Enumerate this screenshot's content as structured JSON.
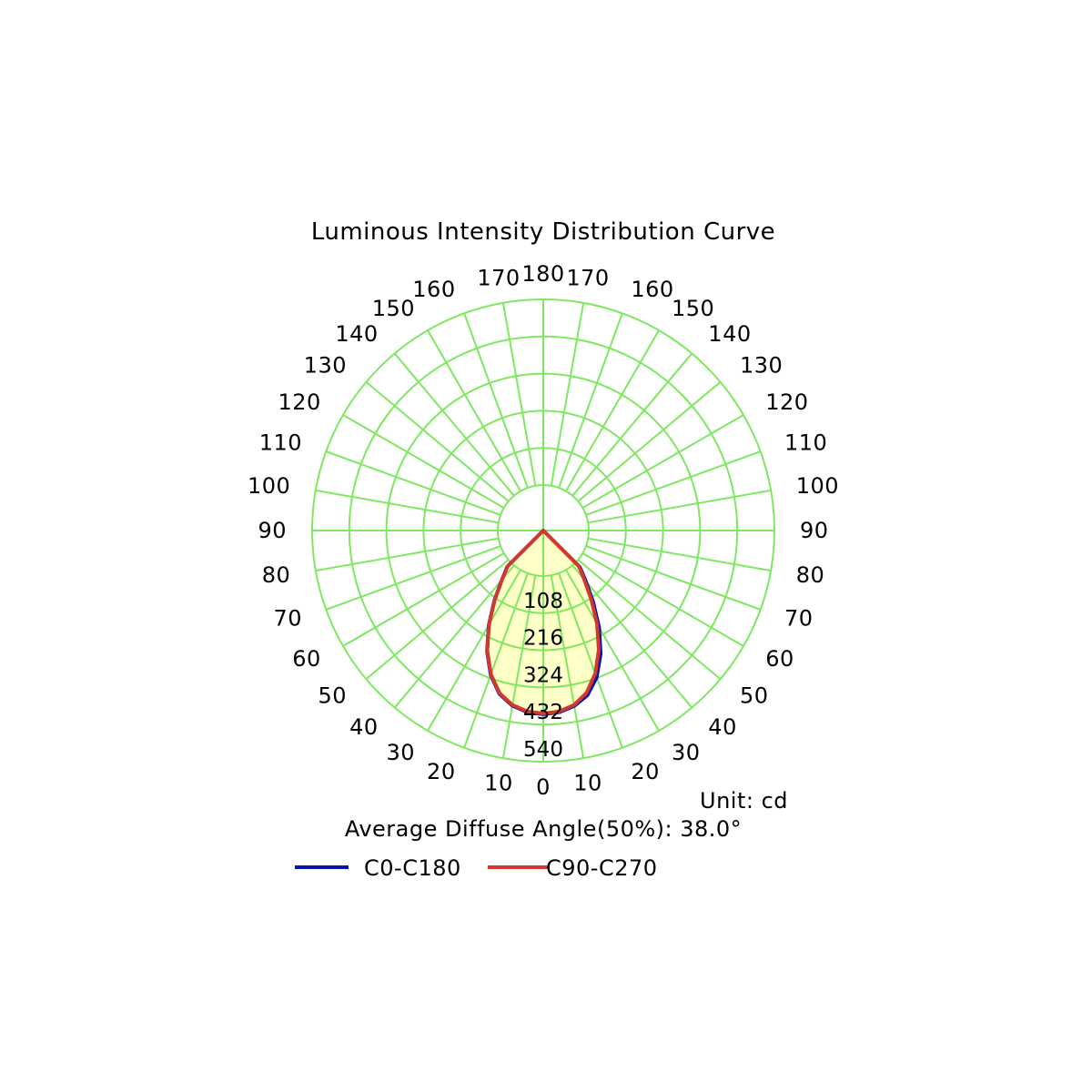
{
  "chart_data": {
    "type": "polar",
    "title": "Luminous Intensity Distribution Curve",
    "unit_label": "Unit: cd",
    "footnote": "Average Diffuse Angle(50%): 38.0°",
    "radial_axis": {
      "max": 540,
      "ticks": [
        108,
        216,
        324,
        432,
        540
      ]
    },
    "angle_labels_left": [
      0,
      10,
      20,
      30,
      40,
      50,
      60,
      70,
      80,
      90,
      100,
      110,
      120,
      130,
      140,
      150,
      160,
      170,
      180
    ],
    "angle_labels_right": [
      10,
      20,
      30,
      40,
      50,
      60,
      70,
      80,
      90,
      100,
      110,
      120,
      130,
      140,
      150,
      160,
      170
    ],
    "grid": true,
    "legend_placement": "bottom",
    "colors": {
      "grid": "#7ee860",
      "fill": "#ffffc8",
      "c0": "#0a14a8",
      "c90": "#d2382d"
    },
    "series": [
      {
        "name": "C0-C180",
        "color": "#0a14a8",
        "angles": [
          0,
          5,
          10,
          15,
          20,
          25,
          30,
          35,
          40,
          45,
          50
        ],
        "left": [
          402,
          398,
          385,
          360,
          315,
          255,
          185,
          115,
          55,
          15,
          0
        ],
        "right": [
          402,
          398,
          386,
          364,
          322,
          263,
          192,
          120,
          60,
          18,
          0
        ]
      },
      {
        "name": "C90-C270",
        "color": "#d2382d",
        "angles": [
          0,
          5,
          10,
          15,
          20,
          25,
          30,
          35,
          40,
          45,
          50
        ],
        "left": [
          400,
          396,
          383,
          358,
          313,
          253,
          183,
          113,
          54,
          14,
          0
        ],
        "right": [
          400,
          396,
          383,
          356,
          310,
          250,
          180,
          110,
          52,
          14,
          0
        ]
      }
    ]
  }
}
